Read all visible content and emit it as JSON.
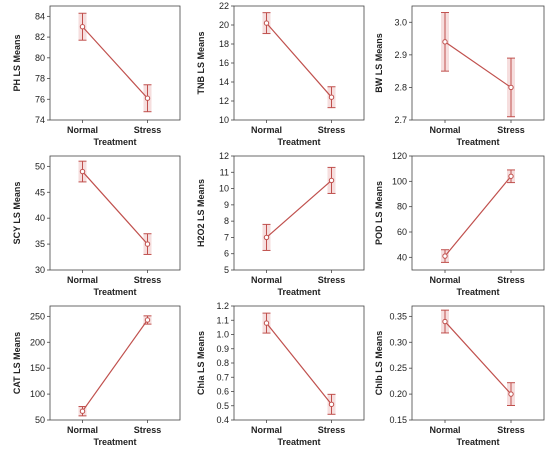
{
  "colors": {
    "series": "#c0504d",
    "highlight": "#f6dede",
    "axis": "#444444"
  },
  "chart_data": [
    {
      "type": "line",
      "categories": [
        "Normal",
        "Stress"
      ],
      "values": [
        83.0,
        76.1
      ],
      "errors": [
        [
          81.7,
          84.3
        ],
        [
          74.8,
          77.4
        ]
      ],
      "xlabel": "Treatment",
      "ylabel": "PH LS Means",
      "ylim": [
        74,
        85
      ],
      "yticks": [
        74,
        76,
        78,
        80,
        82,
        84
      ],
      "tick_decimals": 0,
      "grid": false
    },
    {
      "type": "line",
      "categories": [
        "Normal",
        "Stress"
      ],
      "values": [
        20.2,
        12.4
      ],
      "errors": [
        [
          19.1,
          21.3
        ],
        [
          11.3,
          13.5
        ]
      ],
      "xlabel": "Treatment",
      "ylabel": "TNB LS Means",
      "ylim": [
        10,
        22
      ],
      "yticks": [
        10,
        12,
        14,
        16,
        18,
        20,
        22
      ],
      "tick_decimals": 0,
      "grid": false
    },
    {
      "type": "line",
      "categories": [
        "Normal",
        "Stress"
      ],
      "values": [
        2.94,
        2.8
      ],
      "errors": [
        [
          2.85,
          3.03
        ],
        [
          2.71,
          2.89
        ]
      ],
      "xlabel": "Treatment",
      "ylabel": "BW LS Means",
      "ylim": [
        2.7,
        3.05
      ],
      "yticks": [
        2.7,
        2.8,
        2.9,
        3.0
      ],
      "tick_decimals": 1,
      "grid": false
    },
    {
      "type": "line",
      "categories": [
        "Normal",
        "Stress"
      ],
      "values": [
        49.0,
        35.0
      ],
      "errors": [
        [
          47.0,
          51.0
        ],
        [
          33.0,
          37.0
        ]
      ],
      "xlabel": "Treatment",
      "ylabel": "SCY LS Means",
      "ylim": [
        30,
        52
      ],
      "yticks": [
        30,
        35,
        40,
        45,
        50
      ],
      "tick_decimals": 0,
      "grid": false
    },
    {
      "type": "line",
      "categories": [
        "Normal",
        "Stress"
      ],
      "values": [
        7.0,
        10.5
      ],
      "errors": [
        [
          6.2,
          7.8
        ],
        [
          9.7,
          11.3
        ]
      ],
      "xlabel": "Treatment",
      "ylabel": "H2O2 LS Means",
      "ylim": [
        5,
        12
      ],
      "yticks": [
        5,
        6,
        7,
        8,
        9,
        10,
        11,
        12
      ],
      "tick_decimals": 0,
      "grid": false
    },
    {
      "type": "line",
      "categories": [
        "Normal",
        "Stress"
      ],
      "values": [
        41,
        104
      ],
      "errors": [
        [
          36,
          46
        ],
        [
          99,
          109
        ]
      ],
      "xlabel": "Treatment",
      "ylabel": "POD LS Means",
      "ylim": [
        30,
        120
      ],
      "yticks": [
        40,
        60,
        80,
        100,
        120
      ],
      "tick_decimals": 0,
      "grid": false
    },
    {
      "type": "line",
      "categories": [
        "Normal",
        "Stress"
      ],
      "values": [
        67,
        243
      ],
      "errors": [
        [
          58,
          76
        ],
        [
          235,
          251
        ]
      ],
      "xlabel": "Treatment",
      "ylabel": "CAT LS Means",
      "ylim": [
        50,
        270
      ],
      "yticks": [
        50,
        100,
        150,
        200,
        250
      ],
      "tick_decimals": 0,
      "grid": false
    },
    {
      "type": "line",
      "categories": [
        "Normal",
        "Stress"
      ],
      "values": [
        1.08,
        0.51
      ],
      "errors": [
        [
          1.01,
          1.15
        ],
        [
          0.44,
          0.58
        ]
      ],
      "xlabel": "Treatment",
      "ylabel": "Chla LS Means",
      "ylim": [
        0.4,
        1.2
      ],
      "yticks": [
        0.4,
        0.5,
        0.6,
        0.7,
        0.8,
        0.9,
        1.0,
        1.1,
        1.2
      ],
      "tick_decimals": 1,
      "grid": false
    },
    {
      "type": "line",
      "categories": [
        "Normal",
        "Stress"
      ],
      "values": [
        0.34,
        0.2
      ],
      "errors": [
        [
          0.318,
          0.362
        ],
        [
          0.178,
          0.222
        ]
      ],
      "xlabel": "Treatment",
      "ylabel": "Chlb LS Means",
      "ylim": [
        0.15,
        0.37
      ],
      "yticks": [
        0.15,
        0.2,
        0.25,
        0.3,
        0.35
      ],
      "tick_decimals": 2,
      "grid": false
    }
  ]
}
